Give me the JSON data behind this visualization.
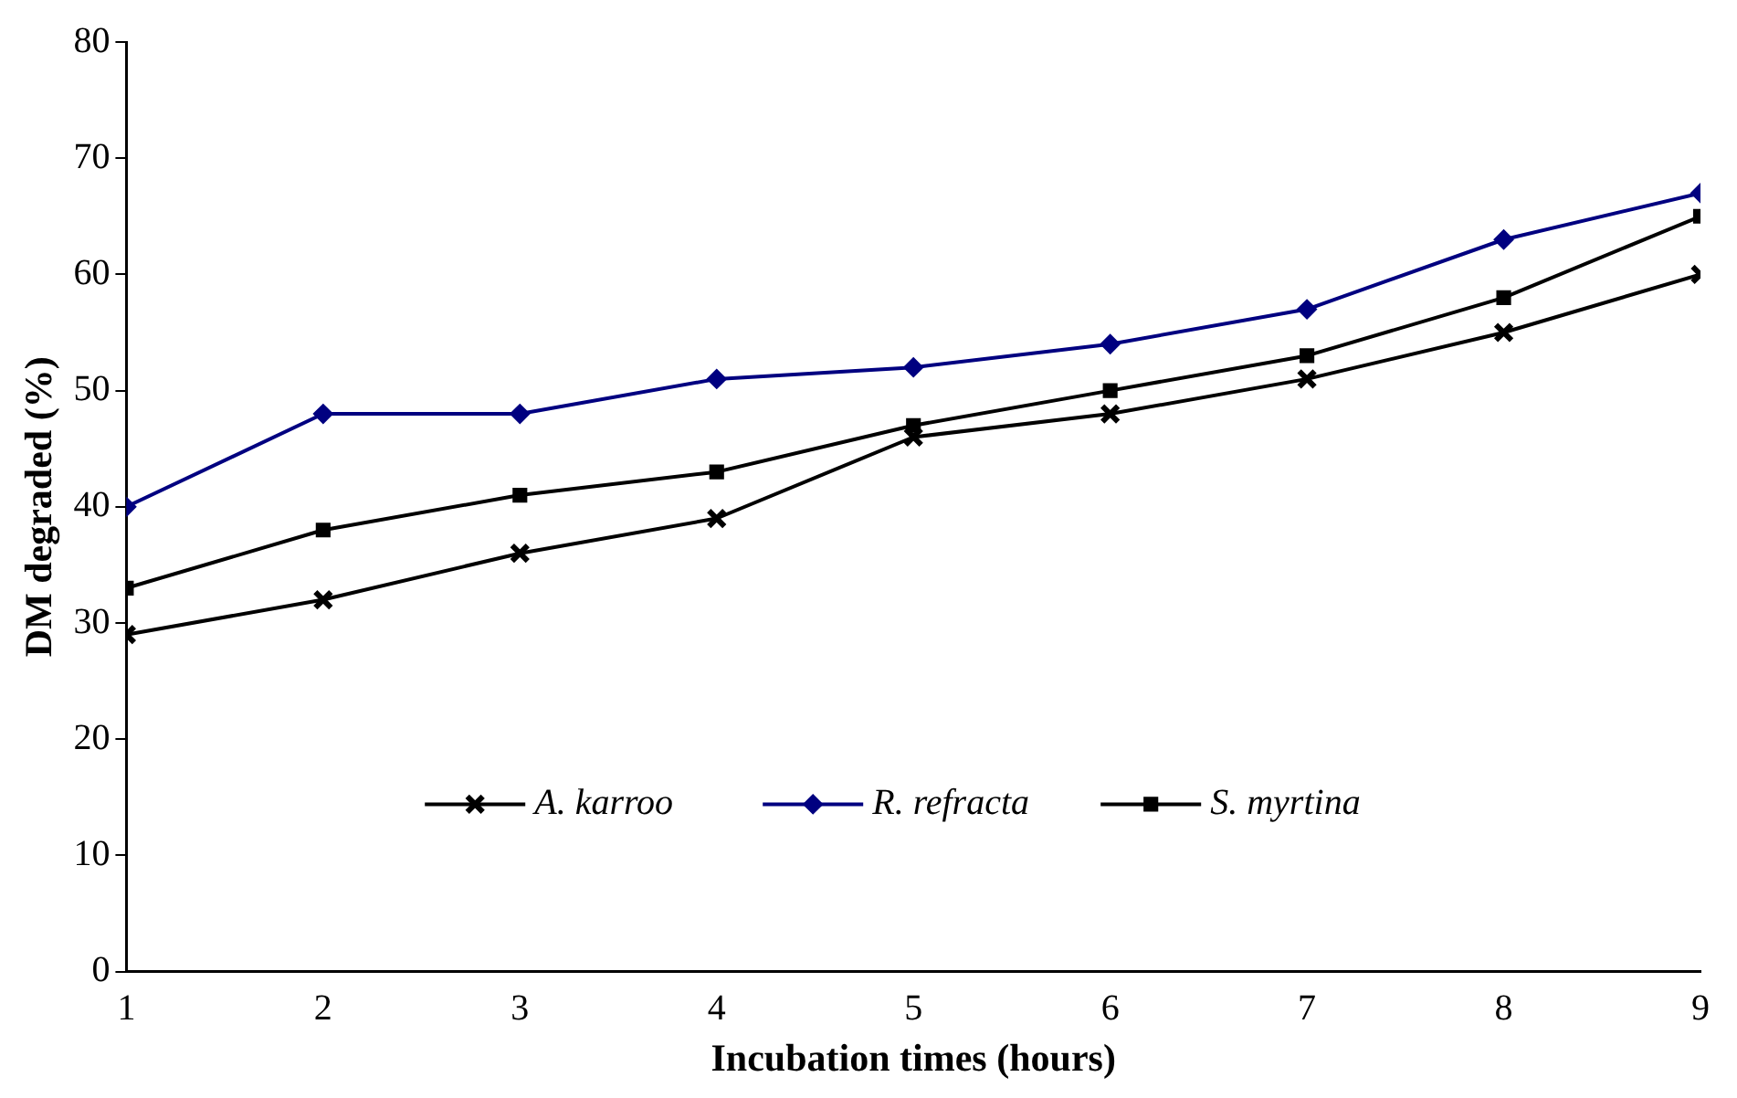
{
  "chart_data": {
    "type": "line",
    "xlabel": "Incubation times (hours)",
    "ylabel": "DM degraded (%)",
    "x": [
      1,
      2,
      3,
      4,
      5,
      6,
      7,
      8,
      9
    ],
    "series": [
      {
        "name": "A. karroo",
        "color": "#000000",
        "marker": "cross",
        "values": [
          29,
          32,
          36,
          39,
          46,
          48,
          51,
          55,
          60
        ]
      },
      {
        "name": "R. refracta",
        "color": "#000080",
        "marker": "diamond",
        "values": [
          40,
          48,
          48,
          51,
          52,
          54,
          57,
          63,
          67
        ]
      },
      {
        "name": "S. myrtina",
        "color": "#000000",
        "marker": "square",
        "values": [
          33,
          38,
          41,
          43,
          47,
          50,
          53,
          58,
          65
        ]
      }
    ],
    "xlim": [
      1,
      9
    ],
    "xticks": [
      1,
      2,
      3,
      4,
      5,
      6,
      7,
      8,
      9
    ],
    "ylim": [
      0,
      80
    ],
    "yticks": [
      0,
      10,
      20,
      30,
      40,
      50,
      60,
      70,
      80
    ],
    "grid": false,
    "legend": "bottom",
    "line_style": "solid"
  }
}
